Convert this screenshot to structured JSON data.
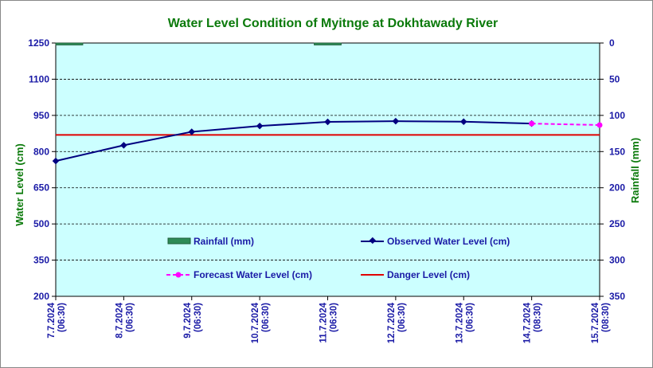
{
  "chart_data": {
    "type": "line",
    "title": "Water Level Condition of Myitnge at Dokhtawady River",
    "ylabel": "Water Level (cm)",
    "y2label": "Rainfall (mm)",
    "ylim": [
      200,
      1250
    ],
    "y2lim": [
      0,
      350
    ],
    "y2_inverted": true,
    "yticks": [
      1250,
      1100,
      950,
      800,
      650,
      500,
      350,
      200
    ],
    "y2ticks": [
      0,
      50,
      100,
      150,
      200,
      250,
      300,
      350
    ],
    "categories": [
      [
        "7.7.2024",
        "(06:30)"
      ],
      [
        "8.7.2024",
        "(06:30)"
      ],
      [
        "9.7.2024",
        "(06:30)"
      ],
      [
        "10.7.2024",
        "(06:30)"
      ],
      [
        "11.7.2024",
        "(06:30)"
      ],
      [
        "12.7.2024",
        "(06:30)"
      ],
      [
        "13.7.2024",
        "(06:30)"
      ],
      [
        "14.7.2024",
        "(08:30)"
      ],
      [
        "15.7.2024",
        "(08:30)"
      ]
    ],
    "rainfall": {
      "name": "Rainfall (mm)",
      "color": "#2e8b57",
      "values": [
        1,
        null,
        null,
        null,
        1,
        null,
        null,
        null,
        null
      ]
    },
    "observed": {
      "name": "Observed Water Level (cm)",
      "color": "#000080",
      "values": [
        761,
        826,
        882,
        906,
        923,
        926,
        924,
        916,
        null
      ]
    },
    "forecast": {
      "name": "Forecast Water Level (cm)",
      "color": "#ff00ff",
      "values": [
        null,
        null,
        null,
        null,
        null,
        null,
        null,
        916,
        910
      ]
    },
    "danger": {
      "name": "Danger Level (cm)",
      "color": "#e00000",
      "value": 869
    },
    "plot_background": "#ccffff",
    "grid": true
  }
}
